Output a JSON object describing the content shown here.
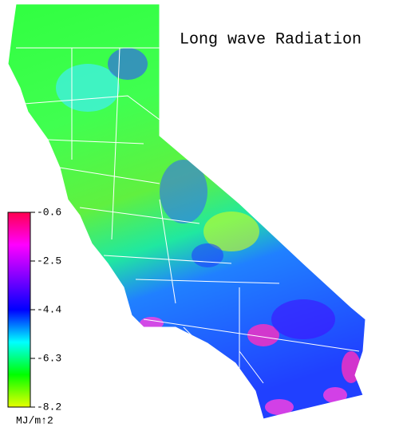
{
  "title": "Long wave Radiation",
  "colorbar": {
    "ticks": [
      -0.6,
      -2.5,
      -4.4,
      -6.3,
      -8.2
    ],
    "range": [
      -8.2,
      -0.6
    ],
    "colors": [
      "#e6ff00",
      "#00ff00",
      "#00ffff",
      "#0000ff",
      "#8000ff",
      "#ff00ff",
      "#ff0050"
    ],
    "unit": "MJ/m↑2"
  }
}
